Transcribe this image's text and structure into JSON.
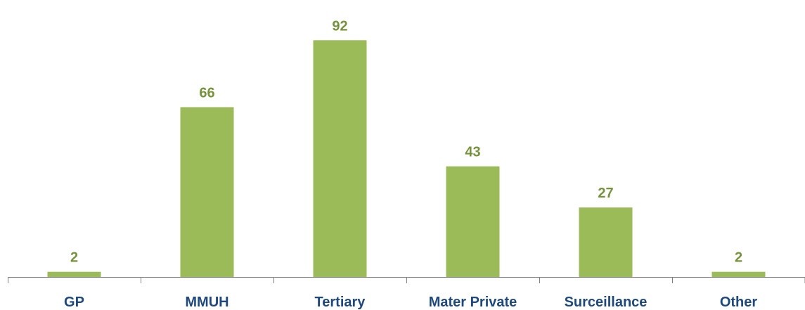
{
  "chart_data": {
    "type": "bar",
    "categories": [
      "GP",
      "MMUH",
      "Tertiary",
      "Mater Private",
      "Surceillance",
      "Other"
    ],
    "values": [
      2,
      66,
      92,
      43,
      27,
      2
    ],
    "ylim": [
      0,
      100
    ],
    "grid": false,
    "legend": "none",
    "data_labels": true,
    "colors": {
      "bar": "#9BBB59",
      "value_label": "#76923C",
      "tick_label": "#1F497D",
      "axis": "#808080"
    }
  }
}
